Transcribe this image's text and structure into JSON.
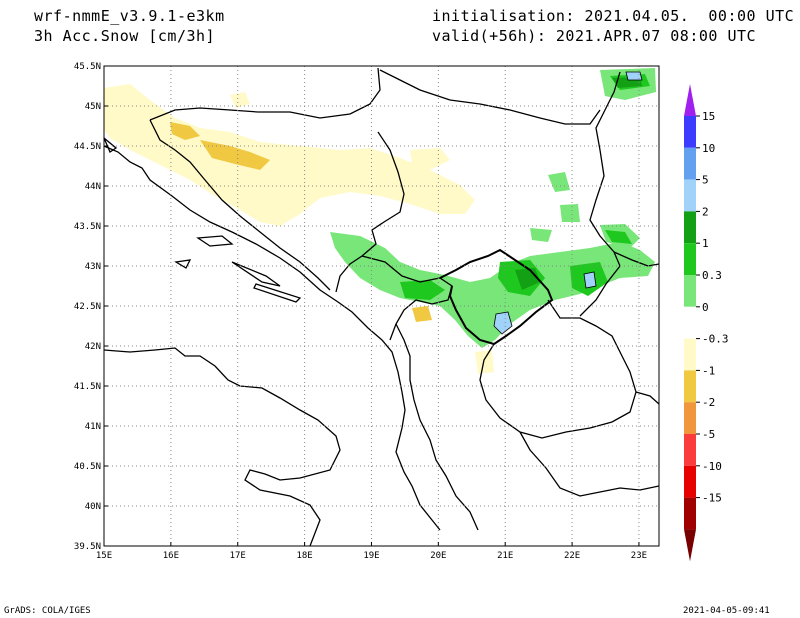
{
  "header": {
    "model": "wrf-nmmE_v3.9.1-e3km",
    "field": "3h Acc.Snow [cm/3h]",
    "init": "initialisation: 2021.04.05.  00:00 UTC",
    "valid": "valid(+56h): 2021.APR.07 08:00 UTC"
  },
  "map": {
    "lon_range": [
      15,
      23.3
    ],
    "lat_range": [
      39.5,
      45.5
    ],
    "lon_ticks": [
      "15E",
      "16E",
      "17E",
      "18E",
      "19E",
      "20E",
      "21E",
      "22E",
      "23E"
    ],
    "lat_ticks": [
      "45.5N",
      "45N",
      "44.5N",
      "44N",
      "43.5N",
      "43N",
      "42.5N",
      "42N",
      "41.5N",
      "41N",
      "40.5N",
      "40N",
      "39.5N"
    ],
    "grid": "dotted"
  },
  "legend": {
    "labels": [
      "15",
      "10",
      "5",
      "2",
      "1",
      "0.3",
      "0",
      "-0.3",
      "-1",
      "-2",
      "-5",
      "-10",
      "-15"
    ],
    "colors": [
      "#a020f0",
      "#3c3cff",
      "#64a0f0",
      "#a0d2fa",
      "#14a014",
      "#1ec81e",
      "#78e678",
      "#ffffff",
      "#fffac8",
      "#f0c841",
      "#f0963c",
      "#fa3c3c",
      "#e60000",
      "#a00000",
      "#780000"
    ]
  },
  "footer": {
    "left": "GrADS: COLA/IGES",
    "right": "2021-04-05-09:41"
  }
}
